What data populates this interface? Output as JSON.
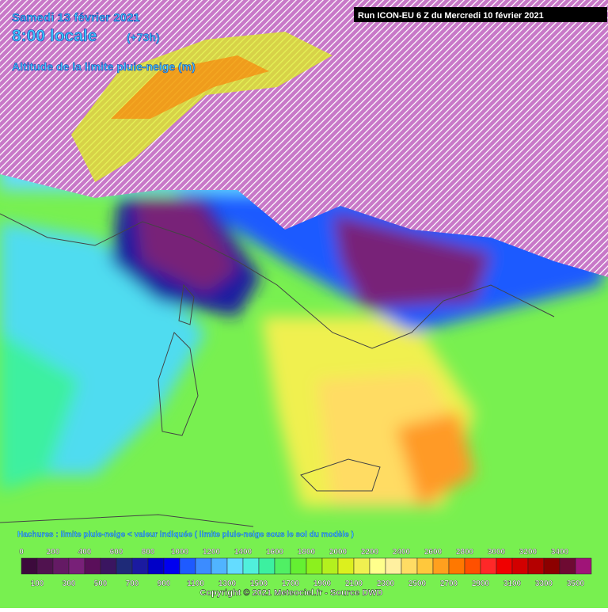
{
  "header": {
    "date": "Samedi 13 février 2021",
    "time": "8:00 locale",
    "lead": "(+73h)",
    "title": "Altitude de la limite pluie-neige (m)",
    "run": "Run ICON-EU 6 Z du Mercredi 10 février 2021"
  },
  "legend": {
    "note": "Hachures : limite pluie-neige < valeur indiquée ( limite pluie-neige sous le sol du modèle )",
    "labels": [
      0,
      100,
      200,
      300,
      400,
      500,
      600,
      700,
      800,
      900,
      1000,
      1100,
      1200,
      1300,
      1400,
      1500,
      1600,
      1700,
      1800,
      1900,
      2000,
      2100,
      2200,
      2300,
      2400,
      2500,
      2600,
      2700,
      2800,
      2900,
      3000,
      3100,
      3200,
      3300,
      3400,
      3500
    ],
    "colors": [
      "#3c0a3c",
      "#50124f",
      "#641a64",
      "#782078",
      "#5a0f5a",
      "#3a1560",
      "#1e2a78",
      "#1a1aa0",
      "#0000c8",
      "#0000f0",
      "#1e5aff",
      "#3c8cff",
      "#50b4ff",
      "#64dcff",
      "#50f0dc",
      "#3cf0a0",
      "#50f064",
      "#64f032",
      "#8cf01e",
      "#b4f01e",
      "#dcf01e",
      "#f0f050",
      "#ffff8c",
      "#fff0a0",
      "#ffdc64",
      "#ffc83c",
      "#ffa01e",
      "#ff7800",
      "#ff5000",
      "#ff2828",
      "#f00000",
      "#d20000",
      "#b40000",
      "#8c0000",
      "#6e0a32",
      "#a01478"
    ]
  },
  "footer": {
    "copyright": "Copyright © 2021 Meteociel.fr - Source DWD"
  }
}
